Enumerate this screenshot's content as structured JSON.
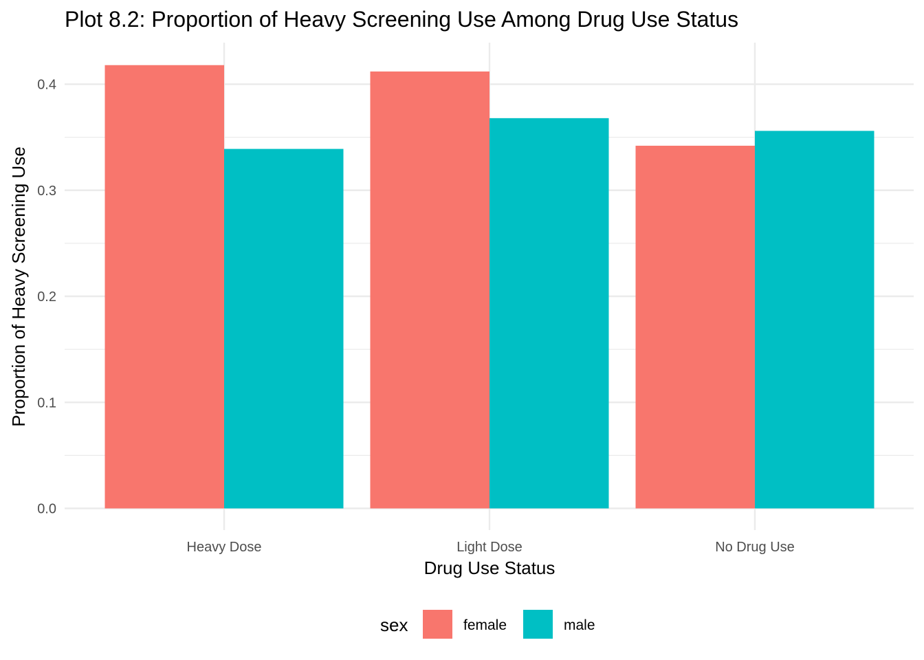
{
  "chart_data": {
    "type": "bar",
    "title": "Plot 8.2: Proportion of Heavy Screening Use Among Drug Use Status",
    "xlabel": "Drug Use Status",
    "ylabel": "Proportion of Heavy Screening Use",
    "categories": [
      "Heavy Dose",
      "Light Dose",
      "No Drug Use"
    ],
    "series": [
      {
        "name": "female",
        "color": "#F8766D",
        "values": [
          0.418,
          0.412,
          0.342
        ]
      },
      {
        "name": "male",
        "color": "#00BFC4",
        "values": [
          0.339,
          0.368,
          0.356
        ]
      }
    ],
    "ylim": [
      0,
      0.44
    ],
    "yticks": [
      0.0,
      0.1,
      0.2,
      0.3,
      0.4
    ],
    "ytick_labels": [
      "0.0",
      "0.1",
      "0.2",
      "0.3",
      "0.4"
    ],
    "grid": true,
    "legend": {
      "title": "sex",
      "position": "bottom"
    }
  }
}
